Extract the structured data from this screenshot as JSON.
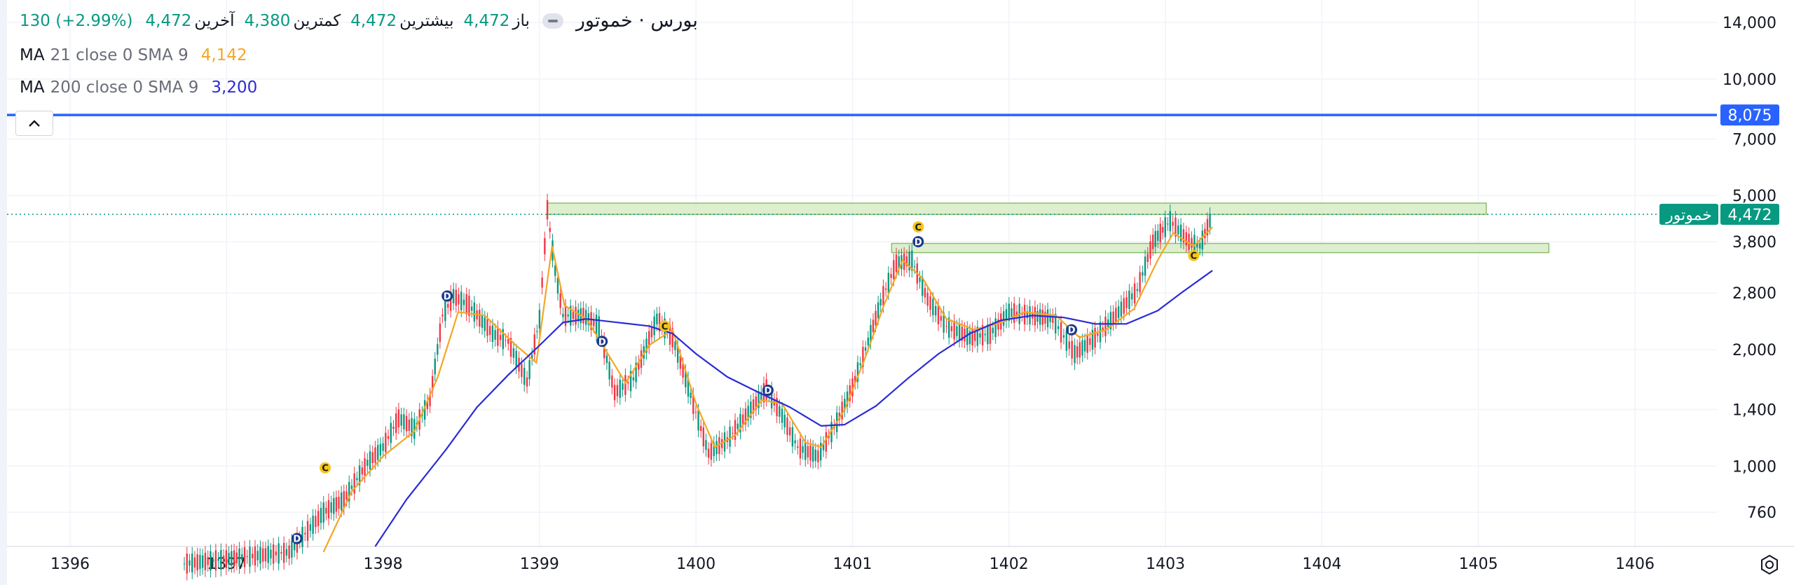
{
  "header": {
    "symbol": "بورس · خموتور",
    "open_label": "باز",
    "open_value": "4,472",
    "high_label": "بیشترین",
    "high_value": "4,472",
    "low_label": "کمترین",
    "low_value": "4,380",
    "last_label": "آخرین",
    "last_value": "4,472",
    "change": "130 (+2.99%)"
  },
  "indicators": [
    {
      "name": "MA",
      "params": "21 close 0 SMA 9",
      "value": "4,142",
      "color": "#f5a623"
    },
    {
      "name": "MA",
      "params": "200 close 0 SMA 9",
      "value": "3,200",
      "color": "#2b2bd6"
    }
  ],
  "price_tags": {
    "hline_value": "8,075",
    "last_price": "4,472",
    "symbol_tag": "خموتور"
  },
  "colors": {
    "up": "#089981",
    "down": "#f23645",
    "hline": "#2962ff",
    "ma21": "#f5a623",
    "ma200": "#2b2bd6",
    "zone_fill": "#d7ecc6",
    "zone_stroke": "#8bbf6e",
    "marker_c": "#f5c518",
    "marker_d": "#1e3a8a"
  },
  "chart_data": {
    "type": "line",
    "scale": "log",
    "x_ticks": [
      "1396",
      "1397",
      "1398",
      "1399",
      "1400",
      "1401",
      "1402",
      "1403",
      "1404",
      "1405",
      "1406"
    ],
    "y_ticks": [
      "14,000",
      "10,000",
      "7,000",
      "5,000",
      "3,800",
      "2,800",
      "2,000",
      "1,400",
      "1,000",
      "760"
    ],
    "y_range": [
      620,
      16000
    ],
    "horizontal_line": 8075,
    "zones": [
      {
        "x_from": 1399.05,
        "x_to": 1405.05,
        "y_from": 4470,
        "y_to": 4780
      },
      {
        "x_from": 1401.25,
        "x_to": 1405.45,
        "y_from": 3560,
        "y_to": 3760
      }
    ],
    "price_series": [
      {
        "x": 1396.73,
        "y": 560
      },
      {
        "x": 1397.4,
        "y": 600
      },
      {
        "x": 1397.62,
        "y": 760
      },
      {
        "x": 1397.75,
        "y": 820
      },
      {
        "x": 1397.9,
        "y": 1020
      },
      {
        "x": 1398.0,
        "y": 1120
      },
      {
        "x": 1398.1,
        "y": 1330
      },
      {
        "x": 1398.2,
        "y": 1250
      },
      {
        "x": 1398.3,
        "y": 1480
      },
      {
        "x": 1398.38,
        "y": 2450
      },
      {
        "x": 1398.45,
        "y": 2750
      },
      {
        "x": 1398.55,
        "y": 2600
      },
      {
        "x": 1398.7,
        "y": 2200
      },
      {
        "x": 1398.8,
        "y": 2100
      },
      {
        "x": 1398.92,
        "y": 1650
      },
      {
        "x": 1399.0,
        "y": 2400
      },
      {
        "x": 1399.05,
        "y": 4600
      },
      {
        "x": 1399.1,
        "y": 3200
      },
      {
        "x": 1399.15,
        "y": 2450
      },
      {
        "x": 1399.28,
        "y": 2450
      },
      {
        "x": 1399.38,
        "y": 2300
      },
      {
        "x": 1399.48,
        "y": 1550
      },
      {
        "x": 1399.6,
        "y": 1680
      },
      {
        "x": 1399.75,
        "y": 2400
      },
      {
        "x": 1399.85,
        "y": 2150
      },
      {
        "x": 1399.95,
        "y": 1600
      },
      {
        "x": 1400.08,
        "y": 1080
      },
      {
        "x": 1400.2,
        "y": 1170
      },
      {
        "x": 1400.35,
        "y": 1400
      },
      {
        "x": 1400.45,
        "y": 1580
      },
      {
        "x": 1400.55,
        "y": 1350
      },
      {
        "x": 1400.65,
        "y": 1120
      },
      {
        "x": 1400.78,
        "y": 1060
      },
      {
        "x": 1400.9,
        "y": 1300
      },
      {
        "x": 1401.0,
        "y": 1600
      },
      {
        "x": 1401.1,
        "y": 2100
      },
      {
        "x": 1401.18,
        "y": 2650
      },
      {
        "x": 1401.28,
        "y": 3350
      },
      {
        "x": 1401.38,
        "y": 3400
      },
      {
        "x": 1401.48,
        "y": 2700
      },
      {
        "x": 1401.6,
        "y": 2300
      },
      {
        "x": 1401.75,
        "y": 2150
      },
      {
        "x": 1401.88,
        "y": 2200
      },
      {
        "x": 1402.0,
        "y": 2500
      },
      {
        "x": 1402.15,
        "y": 2450
      },
      {
        "x": 1402.28,
        "y": 2400
      },
      {
        "x": 1402.42,
        "y": 1950
      },
      {
        "x": 1402.55,
        "y": 2150
      },
      {
        "x": 1402.7,
        "y": 2500
      },
      {
        "x": 1402.82,
        "y": 2850
      },
      {
        "x": 1402.92,
        "y": 3800
      },
      {
        "x": 1403.03,
        "y": 4300
      },
      {
        "x": 1403.15,
        "y": 3800
      },
      {
        "x": 1403.22,
        "y": 3700
      },
      {
        "x": 1403.3,
        "y": 4472
      }
    ],
    "series": [
      {
        "name": "MA 21",
        "points": [
          {
            "x": 1397.62,
            "y": 600
          },
          {
            "x": 1397.8,
            "y": 860
          },
          {
            "x": 1398.0,
            "y": 1060
          },
          {
            "x": 1398.2,
            "y": 1230
          },
          {
            "x": 1398.35,
            "y": 1700
          },
          {
            "x": 1398.48,
            "y": 2500
          },
          {
            "x": 1398.65,
            "y": 2450
          },
          {
            "x": 1398.85,
            "y": 2050
          },
          {
            "x": 1398.98,
            "y": 1850
          },
          {
            "x": 1399.08,
            "y": 3700
          },
          {
            "x": 1399.16,
            "y": 2600
          },
          {
            "x": 1399.3,
            "y": 2400
          },
          {
            "x": 1399.42,
            "y": 2000
          },
          {
            "x": 1399.55,
            "y": 1640
          },
          {
            "x": 1399.7,
            "y": 2050
          },
          {
            "x": 1399.85,
            "y": 2250
          },
          {
            "x": 1400.0,
            "y": 1450
          },
          {
            "x": 1400.12,
            "y": 1120
          },
          {
            "x": 1400.25,
            "y": 1200
          },
          {
            "x": 1400.42,
            "y": 1480
          },
          {
            "x": 1400.55,
            "y": 1450
          },
          {
            "x": 1400.7,
            "y": 1150
          },
          {
            "x": 1400.8,
            "y": 1120
          },
          {
            "x": 1400.95,
            "y": 1400
          },
          {
            "x": 1401.08,
            "y": 1900
          },
          {
            "x": 1401.2,
            "y": 2600
          },
          {
            "x": 1401.32,
            "y": 3400
          },
          {
            "x": 1401.45,
            "y": 3050
          },
          {
            "x": 1401.6,
            "y": 2400
          },
          {
            "x": 1401.78,
            "y": 2250
          },
          {
            "x": 1401.95,
            "y": 2350
          },
          {
            "x": 1402.1,
            "y": 2500
          },
          {
            "x": 1402.3,
            "y": 2450
          },
          {
            "x": 1402.45,
            "y": 2150
          },
          {
            "x": 1402.62,
            "y": 2250
          },
          {
            "x": 1402.8,
            "y": 2550
          },
          {
            "x": 1402.95,
            "y": 3400
          },
          {
            "x": 1403.05,
            "y": 4000
          },
          {
            "x": 1403.18,
            "y": 3700
          },
          {
            "x": 1403.3,
            "y": 4142
          }
        ]
      },
      {
        "name": "MA 200",
        "points": [
          {
            "x": 1397.95,
            "y": 620
          },
          {
            "x": 1398.15,
            "y": 820
          },
          {
            "x": 1398.4,
            "y": 1100
          },
          {
            "x": 1398.6,
            "y": 1420
          },
          {
            "x": 1398.8,
            "y": 1720
          },
          {
            "x": 1399.0,
            "y": 2050
          },
          {
            "x": 1399.15,
            "y": 2350
          },
          {
            "x": 1399.3,
            "y": 2400
          },
          {
            "x": 1399.5,
            "y": 2350
          },
          {
            "x": 1399.7,
            "y": 2300
          },
          {
            "x": 1399.85,
            "y": 2200
          },
          {
            "x": 1400.0,
            "y": 1950
          },
          {
            "x": 1400.2,
            "y": 1700
          },
          {
            "x": 1400.4,
            "y": 1550
          },
          {
            "x": 1400.6,
            "y": 1420
          },
          {
            "x": 1400.8,
            "y": 1270
          },
          {
            "x": 1400.95,
            "y": 1280
          },
          {
            "x": 1401.15,
            "y": 1430
          },
          {
            "x": 1401.35,
            "y": 1680
          },
          {
            "x": 1401.55,
            "y": 1950
          },
          {
            "x": 1401.75,
            "y": 2200
          },
          {
            "x": 1401.95,
            "y": 2380
          },
          {
            "x": 1402.15,
            "y": 2450
          },
          {
            "x": 1402.35,
            "y": 2420
          },
          {
            "x": 1402.55,
            "y": 2330
          },
          {
            "x": 1402.75,
            "y": 2330
          },
          {
            "x": 1402.95,
            "y": 2520
          },
          {
            "x": 1403.1,
            "y": 2800
          },
          {
            "x": 1403.3,
            "y": 3200
          }
        ]
      }
    ],
    "markers": [
      {
        "x": 1397.45,
        "y": 650,
        "label": "D"
      },
      {
        "x": 1397.63,
        "y": 990,
        "label": "C"
      },
      {
        "x": 1398.41,
        "y": 2750,
        "label": "D"
      },
      {
        "x": 1399.4,
        "y": 2100,
        "label": "D"
      },
      {
        "x": 1399.8,
        "y": 2300,
        "label": "C"
      },
      {
        "x": 1400.46,
        "y": 1570,
        "label": "D"
      },
      {
        "x": 1401.42,
        "y": 4150,
        "label": "C"
      },
      {
        "x": 1401.42,
        "y": 3800,
        "label": "D"
      },
      {
        "x": 1402.4,
        "y": 2250,
        "label": "D"
      },
      {
        "x": 1403.18,
        "y": 3500,
        "label": "C"
      }
    ]
  }
}
